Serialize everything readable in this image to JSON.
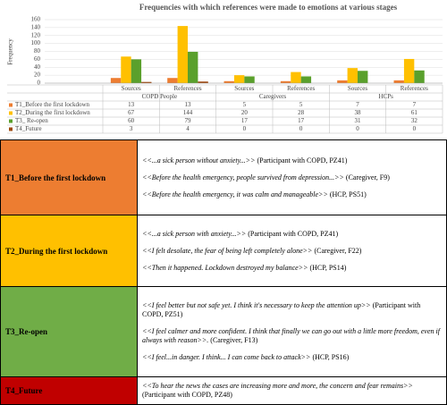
{
  "chart_data": {
    "type": "bar",
    "title": "Frequencies with which references were made to emotions at various stages",
    "y_label": "Frequency",
    "categories": [
      "Sources",
      "References",
      "Sources",
      "References",
      "Sources",
      "References"
    ],
    "groups": [
      "COPD People",
      "Caregivers",
      "HCPs"
    ],
    "series": [
      {
        "name": "T1_Before the first lockdown",
        "color": "#ed7d31",
        "values": [
          13,
          13,
          5,
          5,
          7,
          7
        ]
      },
      {
        "name": "T2_During the first lockdown",
        "color": "#ffc000",
        "values": [
          67,
          144,
          20,
          28,
          38,
          61
        ]
      },
      {
        "name": "T3_ Re-open",
        "color": "#5aa02c",
        "values": [
          60,
          79,
          17,
          17,
          31,
          32
        ]
      },
      {
        "name": "T4_Future",
        "color": "#9e480e",
        "values": [
          3,
          4,
          0,
          0,
          0,
          0
        ]
      }
    ],
    "ylim": [
      0,
      160
    ],
    "yticks": [
      0,
      20,
      40,
      60,
      80,
      100,
      120,
      140,
      160
    ],
    "grid": true
  },
  "table": {
    "rows": [
      {
        "label": "T1_Before the first lockdown",
        "color": "#ed7d31",
        "quotes": [
          {
            "quote": "<<...a sick person without anxiety...>>",
            "source": "(Participant with COPD, PZ41)"
          },
          {
            "quote": "<<Before the health emergency, people survived from depression...>>",
            "source": "(Caregiver, F9)"
          },
          {
            "quote": "<<Before the health emergency, it was calm and manageable>>",
            "source": "(HCP, PS51)"
          }
        ]
      },
      {
        "label": "T2_During the first lockdown",
        "color": "#ffc000",
        "quotes": [
          {
            "quote": "<<...a sick person with anxiety...>>",
            "source": "(Participant with COPD, PZ41)"
          },
          {
            "quote": "<<I felt desolate, the fear of being left completely alone>>",
            "source": "(Caregiver, F22)"
          },
          {
            "quote": "<<Then it happened. Lockdown destroyed my balance>>",
            "source": "(HCP, PS14)"
          }
        ]
      },
      {
        "label": "T3_Re-open",
        "color": "#70ad47",
        "quotes": [
          {
            "quote": "<<I feel better but not safe yet. I think it's necessary to keep the attention up>>",
            "source": "(Participant with COPD, PZ51)"
          },
          {
            "quote": "<<I feel calmer and more confident. I think that finally we can go out with a little more freedom, even if always with reason>>.",
            "source": "(Caregiver, F13)"
          },
          {
            "quote": "<<I feel...in danger. I think... I can come back to attack>>",
            "source": "(HCP, PS16)"
          }
        ]
      },
      {
        "label": "T4_Future",
        "color": "#c00000",
        "quotes": [
          {
            "quote": "<<To hear the news the cases are increasing more and more, the concern and fear remains>>",
            "source": "(Participant with COPD, PZ48)"
          }
        ]
      }
    ]
  }
}
